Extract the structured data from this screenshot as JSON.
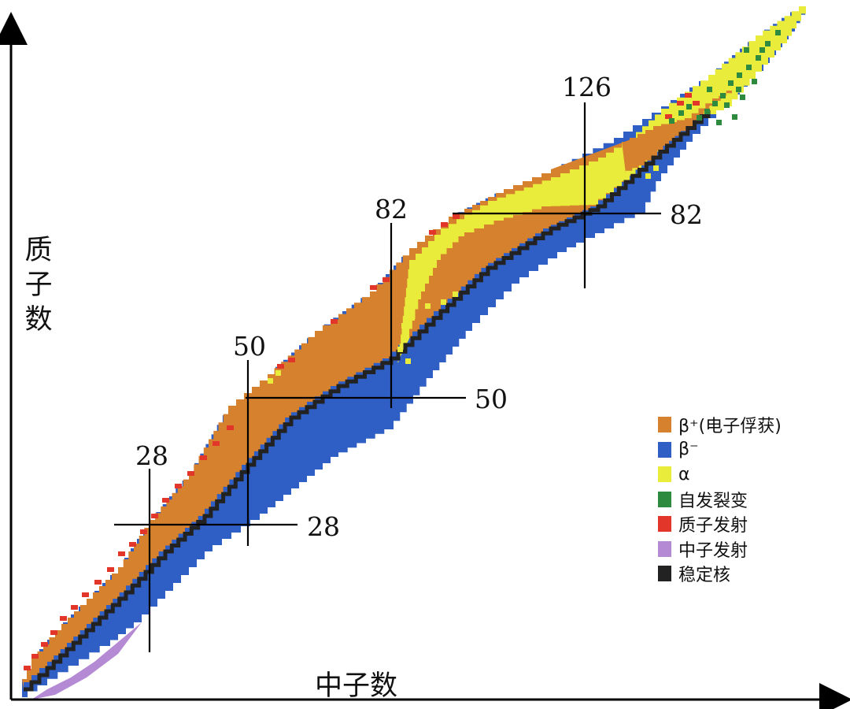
{
  "axes": {
    "x_title": "中子数",
    "y_title_chars": [
      "质",
      "子",
      "数"
    ]
  },
  "magic_numbers": {
    "vertical": [
      "28",
      "50",
      "82",
      "126"
    ],
    "horizontal": [
      "28",
      "50",
      "82"
    ]
  },
  "legend": [
    {
      "label": "β⁺(电子俘获)",
      "color": "#d6812d"
    },
    {
      "label": "β⁻",
      "color": "#2f5fc4"
    },
    {
      "label": "α",
      "color": "#e9ec3a"
    },
    {
      "label": "自发裂变",
      "color": "#2e8a3e"
    },
    {
      "label": "质子发射",
      "color": "#e2362a"
    },
    {
      "label": "中子发射",
      "color": "#b58ad4"
    },
    {
      "label": "稳定核",
      "color": "#222222"
    }
  ]
}
